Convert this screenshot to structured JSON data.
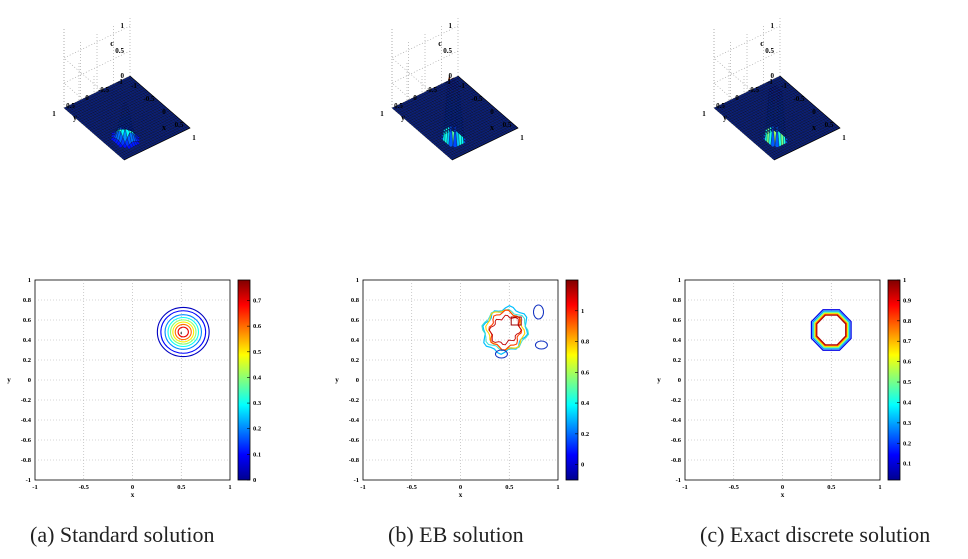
{
  "panels": [
    {
      "caption": "(a) Standard solution",
      "surface": {
        "zlabel": "c",
        "xlabel": "x",
        "ylabel": "y",
        "zticks": [
          "0",
          "0.5",
          "1"
        ],
        "xticks": [
          "-1",
          "-0.5",
          "0",
          "0.5",
          "1"
        ],
        "yticks": [
          "1",
          "0.5",
          "0",
          "-0.5",
          "-1"
        ],
        "peak": 0.78,
        "shape": "smooth"
      },
      "contour": {
        "xlabel": "x",
        "ylabel": "y",
        "xticks": [
          "-1",
          "-0.5",
          "0",
          "0.5",
          "1"
        ],
        "yticks": [
          "1",
          "0.8",
          "0.6",
          "0.4",
          "0.2",
          "0",
          "-0.2",
          "-0.4",
          "-0.6",
          "-0.8",
          "-1"
        ],
        "colorbar_ticks": [
          "0.7",
          "0.6",
          "0.5",
          "0.4",
          "0.3",
          "0.2",
          "0.1",
          "0"
        ],
        "colorbar_range": [
          0,
          0.78
        ]
      }
    },
    {
      "caption": "(b) EB solution",
      "surface": {
        "zlabel": "c",
        "xlabel": "x",
        "ylabel": "y",
        "zticks": [
          "0",
          "0.5",
          "1"
        ],
        "xticks": [
          "-1",
          "-0.5",
          "0",
          "0.5",
          "1"
        ],
        "yticks": [
          "1",
          "0.5",
          "0",
          "-0.5",
          "-1"
        ],
        "peak": 1.25,
        "shape": "spiky"
      },
      "contour": {
        "xlabel": "x",
        "ylabel": "y",
        "xticks": [
          "-1",
          "-0.5",
          "0",
          "0.5",
          "1"
        ],
        "yticks": [
          "1",
          "0.8",
          "0.6",
          "0.4",
          "0.2",
          "0",
          "-0.2",
          "-0.4",
          "-0.6",
          "-0.8",
          "-1"
        ],
        "colorbar_ticks": [
          "1",
          "0.8",
          "0.6",
          "0.4",
          "0.2",
          "0"
        ],
        "colorbar_range": [
          -0.1,
          1.2
        ]
      }
    },
    {
      "caption": "(c) Exact discrete solution",
      "surface": {
        "zlabel": "c",
        "xlabel": "x",
        "ylabel": "y",
        "zticks": [
          "0",
          "0.5",
          "1"
        ],
        "xticks": [
          "-1",
          "-0.5",
          "0",
          "0.5",
          "1"
        ],
        "yticks": [
          "1",
          "0.5",
          "0",
          "-0.5",
          "-1"
        ],
        "peak": 1.0,
        "shape": "plateau"
      },
      "contour": {
        "xlabel": "x",
        "ylabel": "y",
        "xticks": [
          "-1",
          "-0.5",
          "0",
          "0.5",
          "1"
        ],
        "yticks": [
          "1",
          "0.8",
          "0.6",
          "0.4",
          "0.2",
          "0",
          "-0.2",
          "-0.4",
          "-0.6",
          "-0.8",
          "-1"
        ],
        "colorbar_ticks": [
          "1",
          "0.9",
          "0.8",
          "0.7",
          "0.6",
          "0.5",
          "0.4",
          "0.3",
          "0.2",
          "0.1"
        ],
        "colorbar_range": [
          0.02,
          1.0
        ]
      }
    }
  ],
  "chart_data": [
    {
      "type": "surface",
      "title": "",
      "xlabel": "x",
      "ylabel": "y",
      "zlabel": "c",
      "xlim": [
        -1,
        1
      ],
      "ylim": [
        -1,
        1
      ],
      "zlim": [
        0,
        1
      ],
      "bump_center": [
        0.5,
        0.5
      ],
      "peak": 0.78
    },
    {
      "type": "surface",
      "title": "",
      "xlabel": "x",
      "ylabel": "y",
      "zlabel": "c",
      "xlim": [
        -1,
        1
      ],
      "ylim": [
        -1,
        1
      ],
      "zlim": [
        0,
        1
      ],
      "bump_center": [
        0.5,
        0.5
      ],
      "peak": 1.25
    },
    {
      "type": "surface",
      "title": "",
      "xlabel": "x",
      "ylabel": "y",
      "zlabel": "c",
      "xlim": [
        -1,
        1
      ],
      "ylim": [
        -1,
        1
      ],
      "zlim": [
        0,
        1
      ],
      "bump_center": [
        0.5,
        0.5
      ],
      "peak": 1.0
    },
    {
      "type": "contour",
      "xlabel": "x",
      "ylabel": "y",
      "xlim": [
        -1,
        1
      ],
      "ylim": [
        -1,
        1
      ],
      "center": [
        0.5,
        0.5
      ],
      "colorbar": [
        0,
        0.78
      ]
    },
    {
      "type": "contour",
      "xlabel": "x",
      "ylabel": "y",
      "xlim": [
        -1,
        1
      ],
      "ylim": [
        -1,
        1
      ],
      "center": [
        0.5,
        0.5
      ],
      "colorbar": [
        -0.1,
        1.2
      ]
    },
    {
      "type": "contour",
      "xlabel": "x",
      "ylabel": "y",
      "xlim": [
        -1,
        1
      ],
      "ylim": [
        -1,
        1
      ],
      "center": [
        0.5,
        0.5
      ],
      "colorbar": [
        0.02,
        1.0
      ]
    }
  ]
}
